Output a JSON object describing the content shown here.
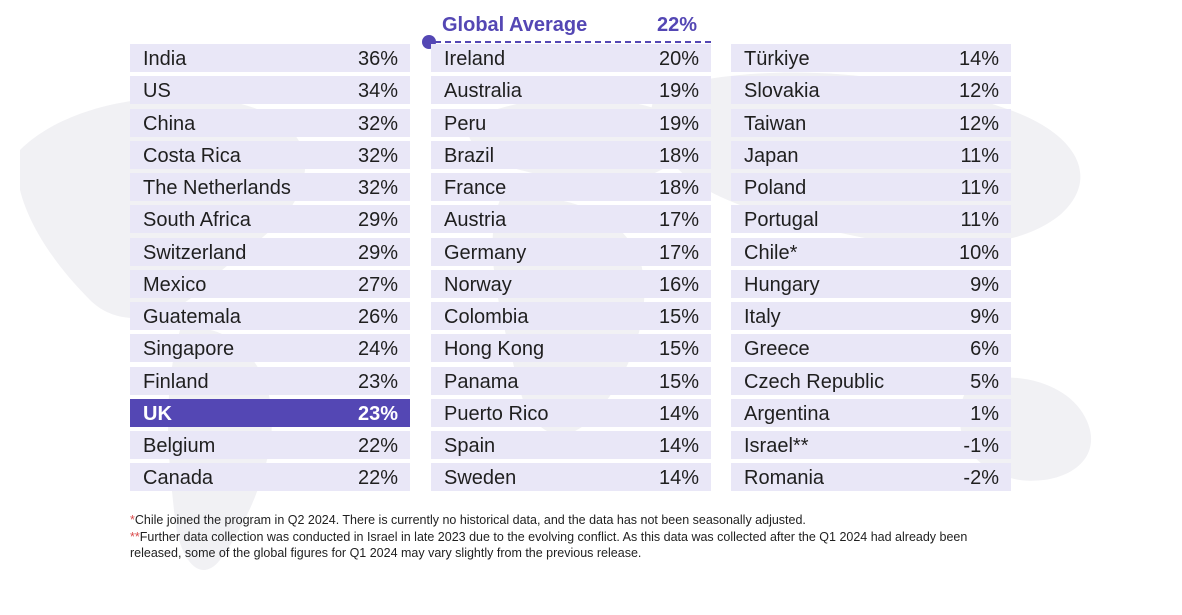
{
  "chart_data": {
    "type": "table",
    "global_average": {
      "label": "Global Average",
      "value": "22%"
    },
    "highlight_color": "#5447b4",
    "row_color": "#e9e7f7",
    "columns": [
      [
        {
          "name": "India",
          "value": "36%"
        },
        {
          "name": "US",
          "value": "34%"
        },
        {
          "name": "China",
          "value": "32%"
        },
        {
          "name": "Costa Rica",
          "value": "32%"
        },
        {
          "name": "The Netherlands",
          "value": "32%"
        },
        {
          "name": "South Africa",
          "value": "29%"
        },
        {
          "name": "Switzerland",
          "value": "29%"
        },
        {
          "name": "Mexico",
          "value": "27%"
        },
        {
          "name": "Guatemala",
          "value": "26%"
        },
        {
          "name": "Singapore",
          "value": "24%"
        },
        {
          "name": "Finland",
          "value": "23%"
        },
        {
          "name": "UK",
          "value": "23%",
          "highlight": true
        },
        {
          "name": "Belgium",
          "value": "22%"
        },
        {
          "name": "Canada",
          "value": "22%"
        }
      ],
      [
        {
          "name": "Ireland",
          "value": "20%"
        },
        {
          "name": "Australia",
          "value": "19%"
        },
        {
          "name": "Peru",
          "value": "19%"
        },
        {
          "name": "Brazil",
          "value": "18%"
        },
        {
          "name": "France",
          "value": "18%"
        },
        {
          "name": "Austria",
          "value": "17%"
        },
        {
          "name": "Germany",
          "value": "17%"
        },
        {
          "name": "Norway",
          "value": "16%"
        },
        {
          "name": "Colombia",
          "value": "15%"
        },
        {
          "name": "Hong Kong",
          "value": "15%"
        },
        {
          "name": "Panama",
          "value": "15%"
        },
        {
          "name": "Puerto Rico",
          "value": "14%"
        },
        {
          "name": "Spain",
          "value": "14%"
        },
        {
          "name": "Sweden",
          "value": "14%"
        }
      ],
      [
        {
          "name": "Türkiye",
          "value": "14%"
        },
        {
          "name": "Slovakia",
          "value": "12%"
        },
        {
          "name": "Taiwan",
          "value": "12%"
        },
        {
          "name": "Japan",
          "value": "11%"
        },
        {
          "name": "Poland",
          "value": "11%"
        },
        {
          "name": "Portugal",
          "value": "11%"
        },
        {
          "name": "Chile*",
          "value": "10%"
        },
        {
          "name": "Hungary",
          "value": "9%"
        },
        {
          "name": "Italy",
          "value": "9%"
        },
        {
          "name": "Greece",
          "value": "6%"
        },
        {
          "name": "Czech Republic",
          "value": "5%"
        },
        {
          "name": "Argentina",
          "value": "1%"
        },
        {
          "name": "Israel**",
          "value": "-1%"
        },
        {
          "name": "Romania",
          "value": "-2%"
        }
      ]
    ]
  },
  "footnotes": [
    {
      "marker": "*",
      "text": "Chile joined the program in Q2 2024. There is currently no historical data, and the data has not been seasonally adjusted."
    },
    {
      "marker": "**",
      "text": "Further data collection was conducted in Israel in late 2023 due to the evolving conflict. As this data was collected after the Q1 2024 had already been released, some of the global figures for Q1 2024 may vary slightly from the previous release."
    }
  ]
}
